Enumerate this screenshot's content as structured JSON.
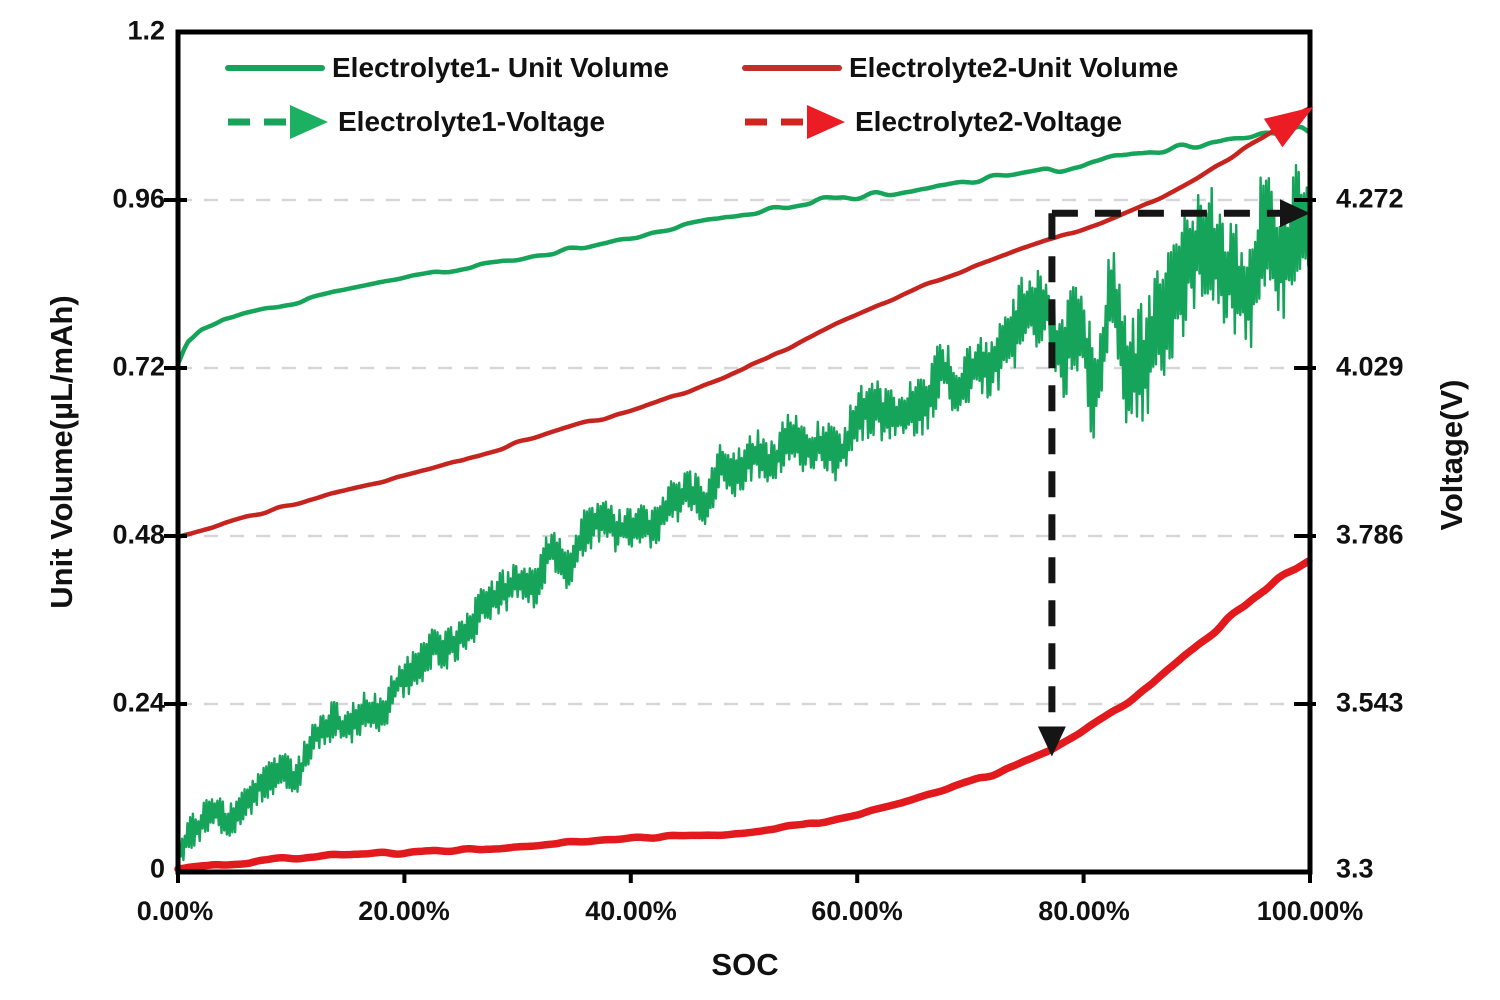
{
  "figure": {
    "background": "#ffffff",
    "frame_color": "#000000",
    "grid_color": "#d7d7d7",
    "text_color": "#111111",
    "annotation_color": "#151515"
  },
  "axes": {
    "left": {
      "title": "Unit Volume(µL/mAh)",
      "ticks": [
        "1.2",
        "0.96",
        "0.72",
        "0.48",
        "0.24",
        "0"
      ],
      "range": [
        0,
        1.2
      ]
    },
    "right": {
      "title": "Voltage(V)",
      "ticks": [
        "4.272",
        "4.029",
        "3.786",
        "3.543",
        "3.3"
      ],
      "range": [
        3.3,
        4.515
      ]
    },
    "x": {
      "title": "SOC",
      "ticks": [
        "0.00%",
        "20.00%",
        "40.00%",
        "60.00%",
        "80.00%",
        "100.00%"
      ],
      "range": [
        0,
        100
      ]
    }
  },
  "legend": {
    "items": [
      {
        "label": "Electrolyte1- Unit Volume",
        "color": "#16a45a",
        "style": "solid"
      },
      {
        "label": "Electrolyte2-Unit Volume",
        "color": "#c0302a",
        "style": "solid"
      },
      {
        "label": "Electrolyte1-Voltage",
        "color": "#16a45a",
        "style": "dash-arrow",
        "arrow_color": "#1cb162"
      },
      {
        "label": "Electrolyte2-Voltage",
        "color": "#d2251f",
        "style": "dash-arrow",
        "arrow_color": "#ec1c24"
      }
    ]
  },
  "chart_data": {
    "type": "line",
    "title": "",
    "xlabel": "SOC",
    "ylabel_left": "Unit Volume(µL/mAh)",
    "ylabel_right": "Voltage(V)",
    "xlim": [
      0,
      100
    ],
    "left_ylim": [
      0,
      1.2
    ],
    "right_ylim": [
      3.3,
      4.515
    ],
    "right_axis_mapping": "voltage = 3.3 + unit_volume_axis_value * 1.0125",
    "grid": "horizontal-dashed at 0.24, 0.48, 0.72, 0.96",
    "legend_position": "top-inside, two columns",
    "noise_seed": 20240519,
    "series": [
      {
        "name": "Electrolyte1- Unit Volume",
        "axis": "left",
        "color": "#16a45a",
        "width": 2.4,
        "mode": "band",
        "step": 0.12,
        "points": [
          [
            0,
            0.025
          ],
          [
            1,
            0.05
          ],
          [
            3,
            0.08
          ],
          [
            6,
            0.105
          ],
          [
            10,
            0.15
          ],
          [
            14,
            0.2
          ],
          [
            18,
            0.25
          ],
          [
            22,
            0.3
          ],
          [
            26,
            0.35
          ],
          [
            30,
            0.4
          ],
          [
            34,
            0.45
          ],
          [
            38,
            0.485
          ],
          [
            42,
            0.515
          ],
          [
            46,
            0.55
          ],
          [
            50,
            0.585
          ],
          [
            54,
            0.61
          ],
          [
            58,
            0.625
          ],
          [
            62,
            0.65
          ],
          [
            66,
            0.69
          ],
          [
            70,
            0.73
          ],
          [
            74,
            0.765
          ],
          [
            77,
            0.78
          ],
          [
            80,
            0.755
          ],
          [
            83,
            0.755
          ],
          [
            86,
            0.785
          ],
          [
            89,
            0.82
          ],
          [
            92,
            0.85
          ],
          [
            95,
            0.885
          ],
          [
            98,
            0.92
          ],
          [
            100,
            0.935
          ]
        ],
        "noise": [
          [
            0,
            0.042
          ],
          [
            30,
            0.05
          ],
          [
            55,
            0.06
          ],
          [
            70,
            0.075
          ],
          [
            80,
            0.12
          ],
          [
            88,
            0.15
          ],
          [
            100,
            0.135
          ]
        ]
      },
      {
        "name": "Electrolyte2-Unit Volume",
        "axis": "left",
        "color": "#e2191d",
        "width": 7.5,
        "mode": "slow",
        "step": 0.3,
        "points": [
          [
            0,
            0.004
          ],
          [
            5,
            0.012
          ],
          [
            10,
            0.02
          ],
          [
            15,
            0.025
          ],
          [
            20,
            0.028
          ],
          [
            25,
            0.031
          ],
          [
            30,
            0.036
          ],
          [
            35,
            0.042
          ],
          [
            40,
            0.048
          ],
          [
            45,
            0.051
          ],
          [
            50,
            0.056
          ],
          [
            55,
            0.066
          ],
          [
            60,
            0.082
          ],
          [
            64,
            0.098
          ],
          [
            68,
            0.118
          ],
          [
            71,
            0.134
          ],
          [
            74,
            0.152
          ],
          [
            77,
            0.172
          ],
          [
            80,
            0.202
          ],
          [
            83,
            0.232
          ],
          [
            86,
            0.267
          ],
          [
            89,
            0.31
          ],
          [
            92,
            0.35
          ],
          [
            95,
            0.392
          ],
          [
            97,
            0.416
          ],
          [
            100,
            0.447
          ]
        ],
        "noise": [
          [
            0,
            0.002
          ],
          [
            100,
            0.003
          ]
        ]
      },
      {
        "name": "Electrolyte1-Voltage",
        "axis": "right",
        "voltage_start": 4.034,
        "voltage_end": 4.37,
        "color": "#16a45a",
        "width": 4.5,
        "mode": "slow",
        "step": 0.3,
        "points": [
          [
            0,
            0.725
          ],
          [
            0.8,
            0.757
          ],
          [
            2,
            0.776
          ],
          [
            4,
            0.79
          ],
          [
            7,
            0.801
          ],
          [
            10,
            0.812
          ],
          [
            15,
            0.833
          ],
          [
            20,
            0.849
          ],
          [
            25,
            0.862
          ],
          [
            30,
            0.876
          ],
          [
            35,
            0.891
          ],
          [
            40,
            0.906
          ],
          [
            45,
            0.923
          ],
          [
            50,
            0.94
          ],
          [
            55,
            0.955
          ],
          [
            60,
            0.966
          ],
          [
            65,
            0.976
          ],
          [
            70,
            0.986
          ],
          [
            75,
            0.997
          ],
          [
            80,
            1.012
          ],
          [
            85,
            1.029
          ],
          [
            90,
            1.042
          ],
          [
            95,
            1.051
          ],
          [
            100,
            1.057
          ]
        ],
        "noise": [
          [
            0,
            0.002
          ],
          [
            50,
            0.004
          ],
          [
            80,
            0.007
          ],
          [
            100,
            0.009
          ]
        ]
      },
      {
        "name": "Electrolyte2-Voltage",
        "axis": "right",
        "voltage_start": 3.784,
        "voltage_end": 4.406,
        "color": "#c5241f",
        "width": 4.5,
        "mode": "slow",
        "step": 0.3,
        "points": [
          [
            0,
            0.478
          ],
          [
            5,
            0.503
          ],
          [
            10,
            0.525
          ],
          [
            15,
            0.546
          ],
          [
            20,
            0.565
          ],
          [
            25,
            0.587
          ],
          [
            30,
            0.613
          ],
          [
            35,
            0.638
          ],
          [
            40,
            0.658
          ],
          [
            44,
            0.68
          ],
          [
            48,
            0.706
          ],
          [
            52,
            0.732
          ],
          [
            55,
            0.757
          ],
          [
            58,
            0.781
          ],
          [
            62,
            0.81
          ],
          [
            66,
            0.838
          ],
          [
            70,
            0.862
          ],
          [
            74,
            0.887
          ],
          [
            78,
            0.909
          ],
          [
            82,
            0.93
          ],
          [
            86,
            0.956
          ],
          [
            90,
            0.99
          ],
          [
            94,
            1.032
          ],
          [
            97,
            1.062
          ],
          [
            100,
            1.092
          ]
        ],
        "noise": [
          [
            0,
            0.002
          ],
          [
            100,
            0.002
          ]
        ],
        "end_arrow": {
          "x_pct": 100.3,
          "v": 1.093,
          "angle_deg": -33,
          "length": 48,
          "half_width": 17,
          "color": "#ec1c24"
        }
      }
    ],
    "annotations": {
      "dash_color": "#151515",
      "dash_width": 7,
      "dash_pattern": "26 17",
      "vline": {
        "x_pct": 77.2,
        "v_top": 0.941,
        "v_bottom": 0.205,
        "arrow_tip_v": 0.165
      },
      "hline": {
        "v": 0.941,
        "x_pct_start": 77.2,
        "x_pct_end": 98.0,
        "arrow_tip_pct": 100
      }
    }
  }
}
